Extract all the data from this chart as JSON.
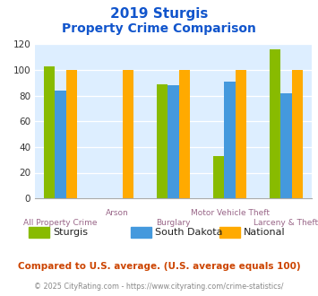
{
  "title_line1": "2019 Sturgis",
  "title_line2": "Property Crime Comparison",
  "categories": [
    "All Property Crime",
    "Arson",
    "Burglary",
    "Motor Vehicle Theft",
    "Larceny & Theft"
  ],
  "series": {
    "Sturgis": [
      103,
      0,
      89,
      33,
      116
    ],
    "South Dakota": [
      84,
      0,
      88,
      91,
      82
    ],
    "National": [
      100,
      100,
      100,
      100,
      100
    ]
  },
  "colors": {
    "Sturgis": "#88bb00",
    "South Dakota": "#4499dd",
    "National": "#ffaa00"
  },
  "ylim": [
    0,
    120
  ],
  "yticks": [
    0,
    20,
    40,
    60,
    80,
    100,
    120
  ],
  "bg_color": "#ddeeff",
  "footer_text1": "Compared to U.S. average. (U.S. average equals 100)",
  "footer_text2": "© 2025 CityRating.com - https://www.cityrating.com/crime-statistics/",
  "title_color": "#1155cc",
  "xlabel_color": "#996688",
  "footer1_color": "#cc4400",
  "footer2_color": "#888888"
}
